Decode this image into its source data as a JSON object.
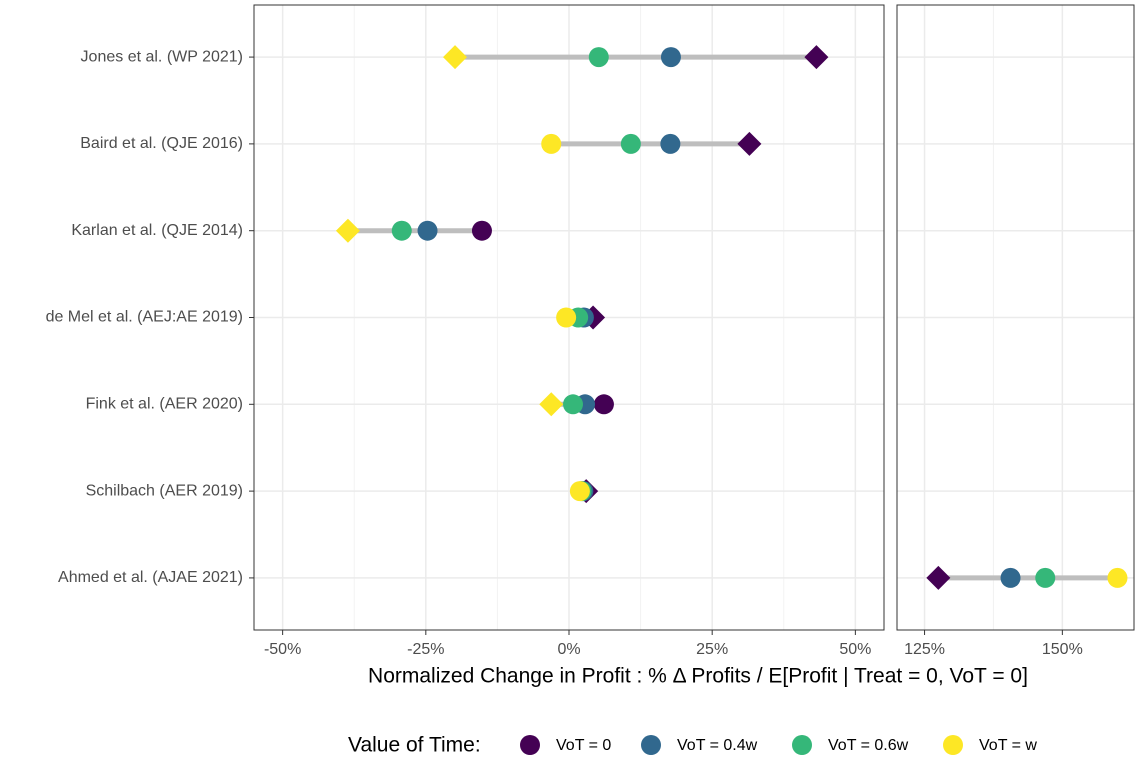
{
  "chart_data": {
    "type": "dot",
    "x_label": "Normalized Change in Profit :  % Δ Profits / E[Profit | Treat = 0, VoT = 0]",
    "legend_title": "Value of Time:",
    "legend_position": "bottom",
    "grid": true,
    "categories": [
      "Jones et al. (WP 2021)",
      "Baird et al. (QJE 2016)",
      "Karlan et al. (QJE 2014)",
      "de Mel et al. (AEJ:AE 2019)",
      "Fink et al. (AER 2020)",
      "Schilbach (AER 2019)",
      "Ahmed et al. (AJAE 2021)"
    ],
    "panels": [
      {
        "xlim": [
          -55,
          55
        ],
        "xticks": [
          {
            "value": -50,
            "label": "-50%"
          },
          {
            "value": -25,
            "label": "-25%"
          },
          {
            "value": 0,
            "label": "0%"
          },
          {
            "value": 25,
            "label": "25%"
          },
          {
            "value": 50,
            "label": "50%"
          }
        ],
        "minor_xticks": [
          -37.5,
          -12.5,
          12.5,
          37.5
        ]
      },
      {
        "xlim": [
          120,
          163
        ],
        "xticks": [
          {
            "value": 125,
            "label": "125%"
          },
          {
            "value": 150,
            "label": "150%"
          }
        ],
        "minor_xticks": [
          137.5
        ]
      }
    ],
    "series": [
      {
        "name": "VoT = 0",
        "color": "#440154",
        "values": [
          43.2,
          31.5,
          -15.2,
          4.2,
          6.1,
          3.0,
          127.5
        ],
        "markers": [
          "diamond",
          "diamond",
          "circle",
          "diamond",
          "circle",
          "diamond",
          "diamond"
        ]
      },
      {
        "name": "VoT = 0.4w",
        "color": "#31688e",
        "values": [
          17.8,
          17.7,
          -24.7,
          2.6,
          2.8,
          2.5,
          140.6
        ],
        "markers": [
          "circle",
          "circle",
          "circle",
          "circle",
          "circle",
          "circle",
          "circle"
        ]
      },
      {
        "name": "VoT = 0.6w",
        "color": "#35b779",
        "values": [
          5.2,
          10.8,
          -29.2,
          1.6,
          0.7,
          2.2,
          146.9
        ],
        "markers": [
          "circle",
          "circle",
          "circle",
          "circle",
          "circle",
          "circle",
          "circle"
        ]
      },
      {
        "name": "VoT = w",
        "color": "#fde725",
        "values": [
          -19.9,
          -3.1,
          -38.6,
          -0.5,
          -3.1,
          1.9,
          160.0
        ],
        "markers": [
          "diamond",
          "circle",
          "diamond",
          "circle",
          "diamond",
          "circle",
          "circle"
        ]
      }
    ]
  }
}
